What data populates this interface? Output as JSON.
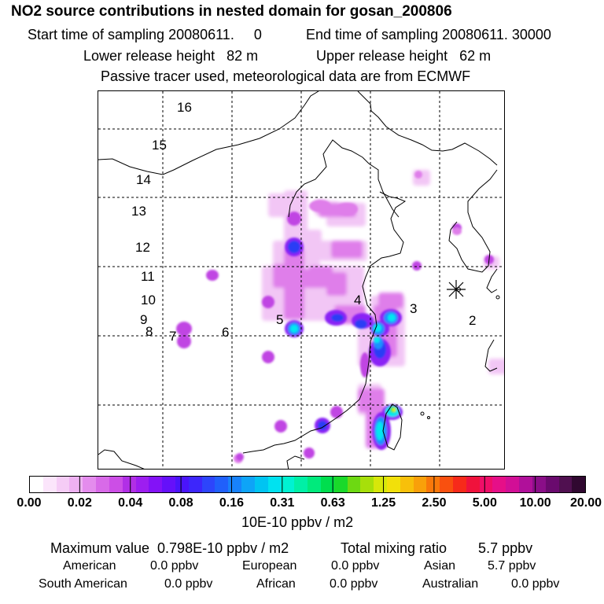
{
  "header": {
    "title": "NO2 source contributions in nested domain for gosan_200806",
    "start_label": "Start time of sampling 20080611.     0",
    "end_label": "End time of sampling 20080611. 30000",
    "lower_label": "Lower release height   82 m",
    "upper_label": "Upper release height   62 m",
    "tracer_note": "Passive tracer used, meteorological data are from ECMWF"
  },
  "map": {
    "region_labels": [
      "16",
      "15",
      "14",
      "13",
      "12",
      "11",
      "10",
      "9",
      "8",
      "7",
      "6",
      "5",
      "4",
      "3",
      "2"
    ],
    "colors": {
      "pale": "#f2c6f5",
      "light_magenta": "#df7eea",
      "magenta": "#c044e3",
      "violet": "#8a22f5",
      "blue": "#2a3cf5",
      "sky": "#1e90ff",
      "cyan": "#00e8f0",
      "green": "#33dd55",
      "yellow": "#d8f000"
    }
  },
  "colorbar": {
    "ticks": [
      "0.00",
      "0.02",
      "0.04",
      "0.08",
      "0.16",
      "0.31",
      "0.63",
      "1.25",
      "2.50",
      "5.00",
      "10.00",
      "20.00"
    ],
    "unit": "10E-10 ppbv / m2",
    "colors": [
      "#ffffff",
      "#fbe5fb",
      "#f5ccf6",
      "#eeb1f2",
      "#e48ced",
      "#d86ae8",
      "#cc4ee6",
      "#b12fe6",
      "#9d1ef0",
      "#8312f7",
      "#6510fa",
      "#4a14fb",
      "#3d26fb",
      "#2d45fb",
      "#2060fb",
      "#1882fb",
      "#0ea4f7",
      "#00c4f2",
      "#00e2f0",
      "#00f2d2",
      "#00f0a6",
      "#00ea7c",
      "#00de4e",
      "#1ad92a",
      "#6dd912",
      "#a7df0a",
      "#d7e70a",
      "#f2e00a",
      "#f8c00a",
      "#f9a00a",
      "#f9780a",
      "#f9500f",
      "#f72a1a",
      "#f0123c",
      "#ef0e68",
      "#e60f88",
      "#d20f96",
      "#b0109a",
      "#8a0e88",
      "#6a0a6e",
      "#501050",
      "#300830"
    ]
  },
  "footer": {
    "max_value": "Maximum value  0.798E-10 ppbv / m2",
    "total_mixing": "Total mixing ratio        5.7 ppbv",
    "american_label": "American",
    "american_value": "0.0 ppbv",
    "european_label": "European",
    "european_value": "0.0 ppbv",
    "asian_label": "Asian",
    "asian_value": "5.7 ppbv",
    "south_american_label": "South American",
    "south_american_value": "0.0 ppbv",
    "african_label": "African",
    "african_value": "0.0 ppbv",
    "australian_label": "Australian",
    "australian_value": "0.0 ppbv"
  }
}
